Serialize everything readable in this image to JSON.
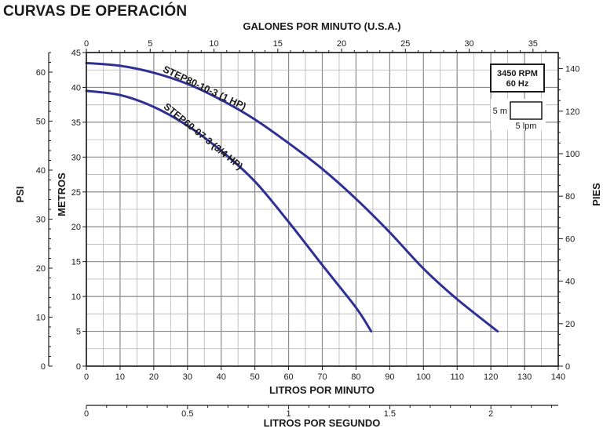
{
  "title": "CURVAS DE OPERACIÓN",
  "axes": {
    "top_label": "GALONES POR MINUTO (U.S.A.)",
    "bottom_label": "LITROS POR MINUTO",
    "bottom2_label": "LITROS POR SEGUNDO",
    "left_outer_label": "PSI",
    "left_inner_label": "METROS",
    "right_label": "PIES"
  },
  "legend": {
    "speed": "3450 RPM",
    "freq": "60 Hz",
    "scale_v": "5 m",
    "scale_h": "5 lpm"
  },
  "chart_data": {
    "type": "line",
    "x_lpm": {
      "range": [
        0,
        140
      ],
      "ticks": [
        0,
        10,
        20,
        30,
        40,
        50,
        60,
        70,
        80,
        90,
        100,
        110,
        120,
        130,
        140
      ]
    },
    "x_gpm": {
      "range": [
        0,
        36.98
      ],
      "ticks": [
        0,
        5,
        10,
        15,
        20,
        25,
        30,
        35
      ]
    },
    "x_lps": {
      "range": [
        0,
        2.333
      ],
      "ticks": [
        0,
        0.5,
        1,
        1.5,
        2
      ],
      "tick_labels": [
        "0",
        "0.5",
        "1",
        "1.5",
        "2"
      ]
    },
    "y_m": {
      "range": [
        0,
        45
      ],
      "ticks": [
        0,
        5,
        10,
        15,
        20,
        25,
        30,
        35,
        40,
        45
      ]
    },
    "y_psi": {
      "range": [
        0,
        64
      ],
      "ticks": [
        0,
        10,
        20,
        30,
        40,
        50,
        60
      ]
    },
    "y_ft": {
      "range": [
        0,
        147.6
      ],
      "ticks": [
        0,
        20,
        40,
        60,
        80,
        100,
        120,
        140
      ]
    },
    "grid": true,
    "series": [
      {
        "name": "STEP80-10-3",
        "label_suffix": "(1 HP)",
        "color": "#2e3192",
        "x": [
          0,
          10,
          20,
          30,
          40,
          50,
          60,
          70,
          80,
          90,
          100,
          110,
          122
        ],
        "y": [
          43.5,
          43.1,
          42.1,
          40.5,
          38.2,
          35.4,
          32.0,
          28.3,
          24.0,
          19.2,
          14.0,
          9.6,
          5.0
        ]
      },
      {
        "name": "STEP60-07-3",
        "label_suffix": "(3/4 HP)",
        "color": "#2e3192",
        "x": [
          0,
          10,
          20,
          30,
          40,
          50,
          60,
          70,
          80,
          84.5
        ],
        "y": [
          39.5,
          38.9,
          37.2,
          34.5,
          30.9,
          26.5,
          20.7,
          14.5,
          8.4,
          5.0
        ]
      }
    ]
  }
}
